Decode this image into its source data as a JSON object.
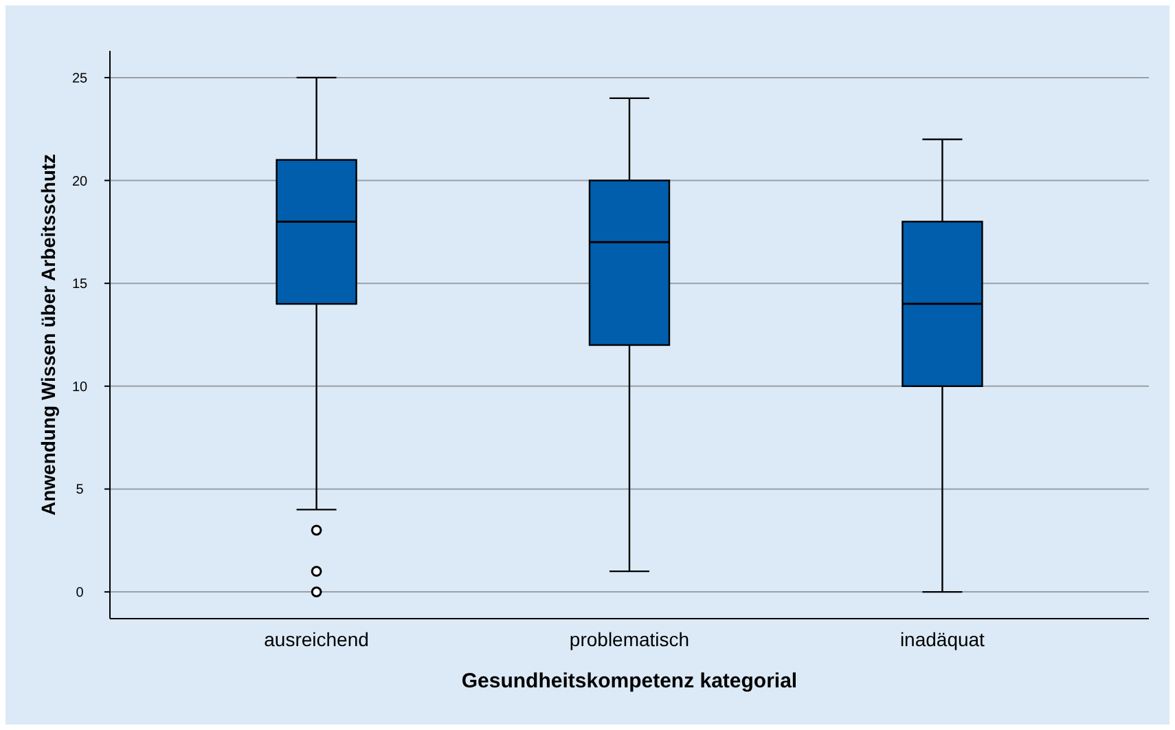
{
  "chart_data": {
    "type": "box",
    "xlabel": "Gesundheitskompetenz kategorial",
    "ylabel": "Anwendung Wissen über Arbeitsschutz",
    "categories": [
      "ausreichend",
      "problematisch",
      "inadäquat"
    ],
    "color": "#005eac",
    "boxes": [
      {
        "low": 4,
        "q1": 14,
        "median": 18,
        "q3": 21,
        "high": 25,
        "outliers": [
          3,
          1,
          0
        ]
      },
      {
        "low": 1,
        "q1": 12,
        "median": 17,
        "q3": 20,
        "high": 24
      },
      {
        "low": 0,
        "q1": 10,
        "median": 14,
        "q3": 18,
        "high": 22
      }
    ],
    "ylim": [
      -1.3,
      26.3
    ],
    "yticks": [
      0,
      5,
      10,
      15,
      20,
      25
    ],
    "grid": "y"
  }
}
